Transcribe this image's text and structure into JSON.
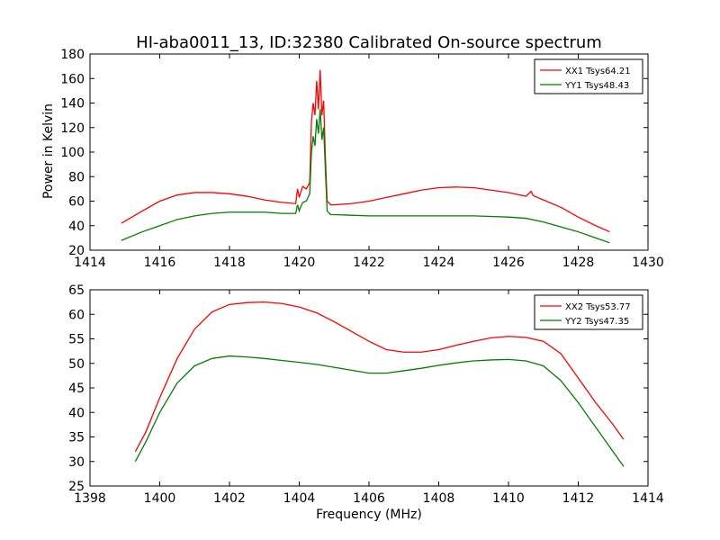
{
  "figure": {
    "title": "HI-aba0011_13, ID:32380 Calibrated On-source spectrum",
    "xlabel": "Frequency (MHz)",
    "ylabel": "Power in Kelvin"
  },
  "chart_data": [
    {
      "type": "line",
      "title": "HI-aba0011_13, ID:32380 Calibrated On-source spectrum",
      "xlabel": "",
      "ylabel": "Power in Kelvin",
      "xlim": [
        1414,
        1430
      ],
      "ylim": [
        20,
        180
      ],
      "xticks": [
        1414,
        1416,
        1418,
        1420,
        1422,
        1424,
        1426,
        1428,
        1430
      ],
      "yticks": [
        20,
        40,
        60,
        80,
        100,
        120,
        140,
        160,
        180
      ],
      "grid": false,
      "legend": "top-right",
      "series": [
        {
          "name": "XX1 Tsys64.21",
          "color": "#ff0000",
          "x": [
            1414.9,
            1415.5,
            1416.0,
            1416.5,
            1417.0,
            1417.5,
            1418.0,
            1418.5,
            1419.0,
            1419.5,
            1419.9,
            1419.95,
            1420.0,
            1420.05,
            1420.1,
            1420.2,
            1420.3,
            1420.35,
            1420.4,
            1420.45,
            1420.5,
            1420.55,
            1420.6,
            1420.65,
            1420.7,
            1420.75,
            1420.8,
            1420.9,
            1421.0,
            1421.5,
            1422.0,
            1422.5,
            1423.0,
            1423.5,
            1424.0,
            1424.5,
            1425.0,
            1425.5,
            1426.0,
            1426.5,
            1426.65,
            1426.7,
            1426.75,
            1427.0,
            1427.5,
            1428.0,
            1428.5,
            1428.9
          ],
          "y": [
            42,
            52,
            60,
            65,
            67,
            67,
            66,
            64,
            61,
            59,
            58,
            70,
            63,
            68,
            72,
            70,
            75,
            125,
            140,
            130,
            158,
            135,
            167,
            130,
            142,
            95,
            60,
            57,
            57,
            58,
            60,
            63,
            66,
            69,
            71,
            71.5,
            71,
            69,
            67,
            64,
            68,
            65,
            64,
            61,
            55,
            47,
            40,
            35
          ]
        },
        {
          "name": "YY1 Tsys48.43",
          "color": "#008000",
          "x": [
            1414.9,
            1415.5,
            1416.0,
            1416.5,
            1417.0,
            1417.5,
            1418.0,
            1418.5,
            1419.0,
            1419.5,
            1419.9,
            1419.95,
            1420.0,
            1420.05,
            1420.1,
            1420.2,
            1420.3,
            1420.35,
            1420.4,
            1420.45,
            1420.5,
            1420.55,
            1420.6,
            1420.65,
            1420.7,
            1420.75,
            1420.8,
            1420.9,
            1421.0,
            1421.5,
            1422.0,
            1422.5,
            1423.0,
            1423.5,
            1424.0,
            1424.5,
            1425.0,
            1425.5,
            1426.0,
            1426.5,
            1427.0,
            1427.5,
            1428.0,
            1428.5,
            1428.9
          ],
          "y": [
            28,
            35,
            40,
            45,
            48,
            50,
            51,
            51,
            51,
            50,
            50,
            57,
            52,
            56,
            59,
            60,
            66,
            100,
            113,
            105,
            127,
            115,
            135,
            110,
            120,
            85,
            52,
            49,
            49,
            48.5,
            48,
            48,
            48,
            48,
            48,
            48,
            48,
            47.5,
            47,
            46,
            43,
            39,
            35,
            30,
            26
          ]
        }
      ]
    },
    {
      "type": "line",
      "title": "",
      "xlabel": "Frequency (MHz)",
      "ylabel": "",
      "xlim": [
        1398,
        1414
      ],
      "ylim": [
        25,
        65
      ],
      "xticks": [
        1398,
        1400,
        1402,
        1404,
        1406,
        1408,
        1410,
        1412,
        1414
      ],
      "yticks": [
        25,
        30,
        35,
        40,
        45,
        50,
        55,
        60,
        65
      ],
      "grid": false,
      "legend": "top-right",
      "series": [
        {
          "name": "XX2 Tsys53.77",
          "color": "#ff0000",
          "x": [
            1399.3,
            1399.6,
            1400.0,
            1400.5,
            1401.0,
            1401.5,
            1402.0,
            1402.5,
            1403.0,
            1403.5,
            1404.0,
            1404.5,
            1405.0,
            1405.5,
            1406.0,
            1406.5,
            1407.0,
            1407.5,
            1408.0,
            1408.5,
            1409.0,
            1409.5,
            1410.0,
            1410.5,
            1411.0,
            1411.5,
            1412.0,
            1412.5,
            1413.0,
            1413.3
          ],
          "y": [
            32,
            36,
            43,
            51,
            57,
            60.5,
            62,
            62.4,
            62.5,
            62.2,
            61.5,
            60.3,
            58.5,
            56.5,
            54.5,
            52.8,
            52.3,
            52.3,
            52.8,
            53.7,
            54.5,
            55.2,
            55.5,
            55.3,
            54.5,
            52.0,
            47.0,
            42.0,
            37.5,
            34.5
          ]
        },
        {
          "name": "YY2 Tsys47.35",
          "color": "#008000",
          "x": [
            1399.3,
            1399.6,
            1400.0,
            1400.5,
            1401.0,
            1401.5,
            1402.0,
            1402.5,
            1403.0,
            1403.5,
            1404.0,
            1404.5,
            1405.0,
            1405.5,
            1406.0,
            1406.5,
            1407.0,
            1407.5,
            1408.0,
            1408.5,
            1409.0,
            1409.5,
            1410.0,
            1410.5,
            1411.0,
            1411.5,
            1412.0,
            1412.5,
            1413.0,
            1413.3
          ],
          "y": [
            30,
            34,
            40,
            46,
            49.5,
            51,
            51.5,
            51.3,
            51.0,
            50.6,
            50.2,
            49.8,
            49.2,
            48.6,
            48.0,
            48.0,
            48.5,
            49.0,
            49.6,
            50.1,
            50.5,
            50.7,
            50.8,
            50.5,
            49.5,
            46.5,
            42.0,
            37.0,
            32.0,
            29.0
          ]
        }
      ]
    }
  ]
}
